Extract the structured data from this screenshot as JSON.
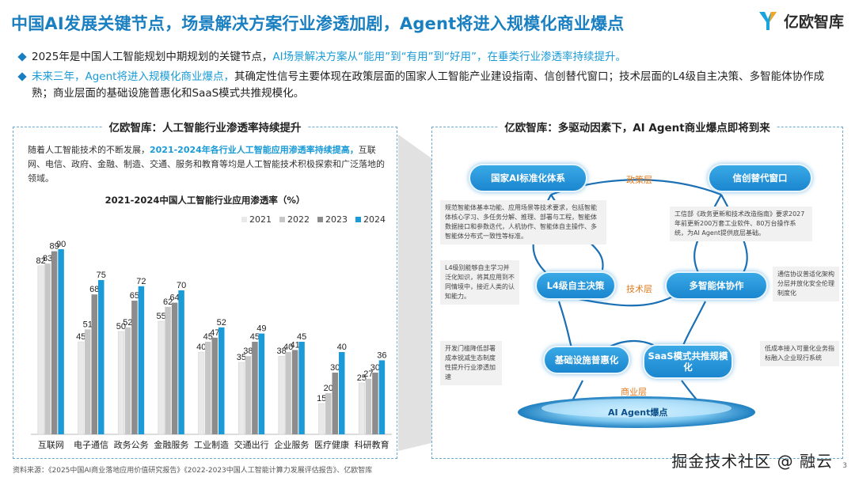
{
  "header": {
    "title": "中国AI发展关键节点，场景解决方案行业渗透加剧，Agent将进入规模化商业爆点",
    "logo_text": "亿欧智库"
  },
  "bullets": [
    {
      "pre": "2025年是中国人工智能规划中期规划的关键节点，",
      "highlight": "AI场景解决方案从“能用”到“有用”到“好用”，在垂类行业渗透率持续提升。",
      "post": ""
    },
    {
      "pre": "",
      "highlight": "未来三年，Agent将进入规模化商业爆点，",
      "post": "其确定性信号主要体现在政策层面的国家人工智能产业建设指南、信创替代窗口；技术层面的L4级自主决策、多智能体协作成熟；商业层面的基础设施普惠化和SaaS模式共推规模化。"
    }
  ],
  "left_panel": {
    "title": "亿欧智库：人工智能行业渗透率持续提升",
    "text_pre": "随着人工智能技术的不断发展，",
    "text_highlight": "2021-2024年各行业人工智能应用渗透率持续提高，",
    "text_post": "互联网、电信、政府、金融、制造、交通、服务和教育等均是人工智能技术积极探索和广泛落地的领域。"
  },
  "chart_data": {
    "type": "bar",
    "title": "2021-2024中国人工智能行业应用渗透率（%）",
    "categories": [
      "互联网",
      "电子通信",
      "政务公务",
      "金融服务",
      "工业制造",
      "交通出行",
      "企业服务",
      "医疗健康",
      "科研教育"
    ],
    "series": [
      {
        "name": "2021",
        "color": "#e9e9e9",
        "values": [
          82,
          45,
          50,
          55,
          40,
          35,
          38,
          15,
          25
        ]
      },
      {
        "name": "2022",
        "color": "#c6c6c6",
        "values": [
          83,
          51,
          52,
          62,
          45,
          38,
          40,
          20,
          27
        ]
      },
      {
        "name": "2023",
        "color": "#8c8c8c",
        "values": [
          89,
          68,
          65,
          64,
          47,
          45,
          41,
          30,
          30
        ]
      },
      {
        "name": "2024",
        "color": "#1a9bd7",
        "values": [
          90,
          75,
          72,
          70,
          52,
          49,
          45,
          40,
          36
        ]
      }
    ],
    "ylim": [
      0,
      100
    ],
    "xlabel": "",
    "ylabel": "",
    "legend": "top-right",
    "grid": false
  },
  "right_panel": {
    "title": "亿欧智库：多驱动因素下，AI Agent商业爆点即将到来",
    "pills": {
      "guide": "国家AI标准化体系",
      "xinchuang": "信创替代窗口",
      "l4": "L4级自主决策",
      "multi": "多智能体协作",
      "infra": "基础设施普惠化",
      "saas": "SaaS模式共推规模化"
    },
    "layers": {
      "policy": "政策层",
      "tech": "技术层",
      "business": "商业层"
    },
    "notes": {
      "guide": "规范智能体基本功能、应用场景等技术要求，包括智能体核心学习、多任务分解、推理、部署与工程，智能体数据接口和参数迭代，人机协作、智能体自主操作、多智能体分布式一致性等标准。",
      "xinchuang": "工信部《政务更新和技术改造指南》要求2027年前更新200万套工业软件、80万台操作系统，为AI Agent提供底层基础。",
      "l4": "L4级别能够自主学习并泛化知识，将其应用到不同情境中，接近人类的认知能力。",
      "multi": "通信协议普适化架构分层并放化安全伦理制度化",
      "infra": "开发门槛降低部署成本锐减生态制度性提升行业渗透加速",
      "saas": "低成本接入可量化业务指标融入企业现行系统"
    },
    "core": "AI Agent爆点"
  },
  "footer": {
    "source": "资料来源：《2025中国AI商业落地应用价值研究报告》《2022-2023中国人工智能计算力发展评估报告》、亿欧智库",
    "watermark": "掘金技术社区 @ 融云",
    "page": "3"
  },
  "colors": {
    "accent": "#1a7fc1",
    "highlight": "#1a9bd7",
    "layer": "#e07b1f"
  }
}
